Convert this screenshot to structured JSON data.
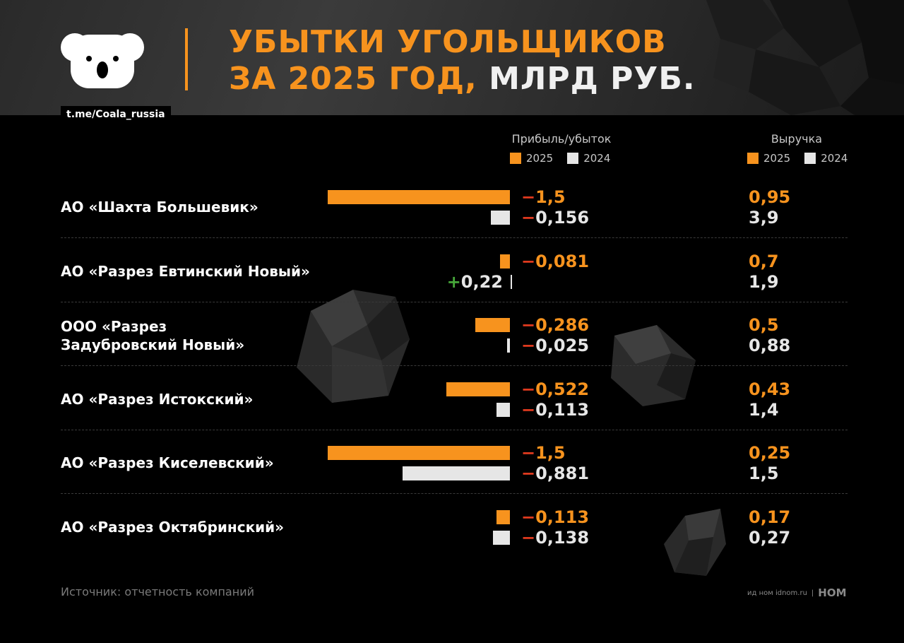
{
  "header": {
    "title_line1": "УБЫТКИ УГОЛЬЩИКОВ",
    "title_line2_orange": "ЗА 2025 ГОД,",
    "title_line2_white": "МЛРД РУБ.",
    "handle": "t.me/Coala_russia",
    "logo_icon": "koala-logo-icon"
  },
  "columns": {
    "profit_title": "Прибыль/убыток",
    "revenue_title": "Выручка",
    "legend_2025": "2025",
    "legend_2024": "2024"
  },
  "colors": {
    "y2025": "#f7931e",
    "y2024": "#e6e6e6",
    "negative": "#e03a1e",
    "positive": "#47a83a"
  },
  "chart_data": {
    "type": "bar",
    "categories": [
      "АО «Шахта Большевик»",
      "АО «Разрез Евтинский Новый»",
      "ООО «Разрез Задубровский Новый»",
      "АО «Разрез Истокский»",
      "АО «Разрез Киселевский»",
      "АО «Разрез Октябринский»"
    ],
    "series": [
      {
        "name": "2025",
        "values": [
          -1.5,
          -0.081,
          -0.286,
          -0.522,
          -1.5,
          -0.113
        ]
      },
      {
        "name": "2024",
        "values": [
          -0.156,
          0.22,
          -0.025,
          -0.113,
          -0.881,
          -0.138
        ]
      }
    ],
    "revenue": [
      {
        "name": "2025",
        "values": [
          0.95,
          0.7,
          0.5,
          0.43,
          0.25,
          0.17
        ]
      },
      {
        "name": "2024",
        "values": [
          3.9,
          1.9,
          0.88,
          1.4,
          1.5,
          0.27
        ]
      }
    ],
    "rows": [
      {
        "company": "АО «Шахта Большевик»",
        "p2025": {
          "sign": "−",
          "num": "1,5"
        },
        "p2024": {
          "sign": "−",
          "num": "0,156"
        },
        "r2025": "0,95",
        "r2024": "3,9"
      },
      {
        "company": "АО «Разрез Евтинский Новый»",
        "p2025": {
          "sign": "−",
          "num": "0,081"
        },
        "p2024": {
          "sign": "+",
          "num": "0,22"
        },
        "r2025": "0,7",
        "r2024": "1,9"
      },
      {
        "company": "ООО «Разрез Задубровский Новый»",
        "p2025": {
          "sign": "−",
          "num": "0,286"
        },
        "p2024": {
          "sign": "−",
          "num": "0,025"
        },
        "r2025": "0,5",
        "r2024": "0,88"
      },
      {
        "company": "АО «Разрез Истокский»",
        "p2025": {
          "sign": "−",
          "num": "0,522"
        },
        "p2024": {
          "sign": "−",
          "num": "0,113"
        },
        "r2025": "0,43",
        "r2024": "1,4"
      },
      {
        "company": "АО «Разрез Киселевский»",
        "p2025": {
          "sign": "−",
          "num": "1,5"
        },
        "p2024": {
          "sign": "−",
          "num": "0,881"
        },
        "r2025": "0,25",
        "r2024": "1,5"
      },
      {
        "company": "АО «Разрез Октябринский»",
        "p2025": {
          "sign": "−",
          "num": "0,113"
        },
        "p2024": {
          "sign": "−",
          "num": "0,138"
        },
        "r2025": "0,17",
        "r2024": "0,27"
      }
    ]
  },
  "footer": {
    "source": "Источник: отчетность компаний",
    "credit_small": "ид ном idnom.ru",
    "credit_brand": "НОМ"
  }
}
